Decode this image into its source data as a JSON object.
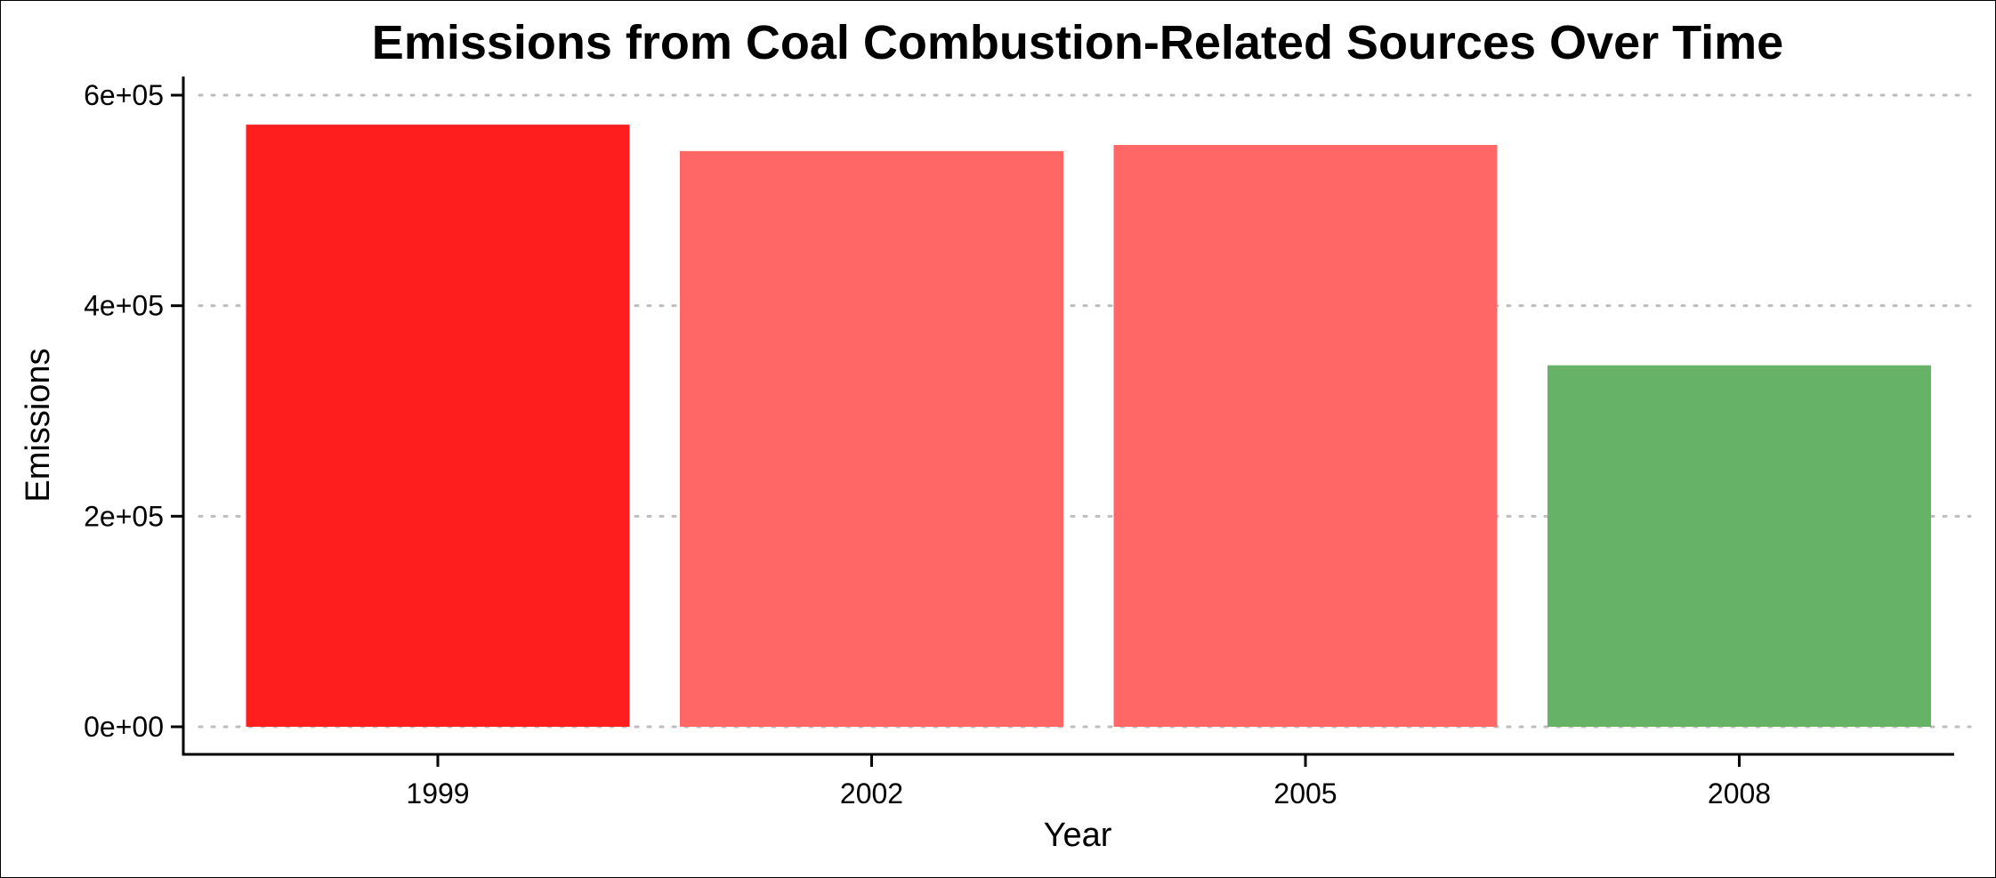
{
  "chart_data": {
    "type": "bar",
    "title": "Emissions from Coal Combustion-Related Sources Over Time",
    "xlabel": "Year",
    "ylabel": "Emissions",
    "categories": [
      "1999",
      "2002",
      "2005",
      "2008"
    ],
    "values": [
      572000,
      546900,
      552700,
      343400
    ],
    "bar_colors": [
      "#ff1e1e",
      "#ff6666",
      "#ff6666",
      "#66b266"
    ],
    "ylim": [
      0,
      600000
    ],
    "yticks": [
      0,
      200000,
      400000,
      600000
    ],
    "ytick_labels": [
      "0e+00",
      "2e+05",
      "4e+05",
      "6e+05"
    ],
    "grid": "horizontal dotted",
    "legend": "none"
  }
}
